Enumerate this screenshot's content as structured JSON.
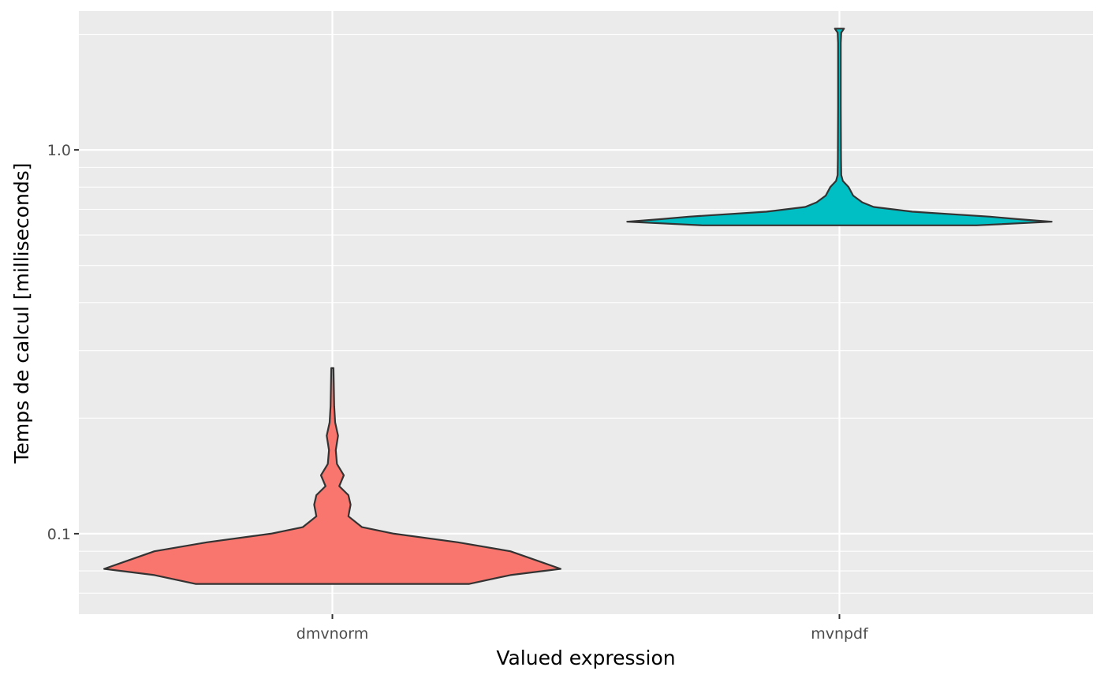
{
  "chart_data": {
    "type": "violin",
    "xlabel": "Valued expression",
    "ylabel": "Temps de calcul [milliseconds]",
    "y_scale": "log10",
    "ylim": [
      0.0617,
      2.3
    ],
    "y_ticks": [
      {
        "value": 0.1,
        "label": "0.1"
      },
      {
        "value": 1.0,
        "label": "1.0"
      }
    ],
    "categories": [
      "dmvnorm",
      "mvnpdf"
    ],
    "grid": true,
    "legend": "none",
    "background": "#ebebeb",
    "series": [
      {
        "category": "dmvnorm",
        "color": "#f8766d",
        "min": 0.074,
        "max": 0.27,
        "density": [
          [
            0.074,
            0.6
          ],
          [
            0.078,
            0.78
          ],
          [
            0.081,
            1.0
          ],
          [
            0.085,
            0.9
          ],
          [
            0.09,
            0.78
          ],
          [
            0.095,
            0.55
          ],
          [
            0.1,
            0.27
          ],
          [
            0.104,
            0.13
          ],
          [
            0.111,
            0.07
          ],
          [
            0.119,
            0.08
          ],
          [
            0.126,
            0.07
          ],
          [
            0.133,
            0.03
          ],
          [
            0.142,
            0.05
          ],
          [
            0.152,
            0.02
          ],
          [
            0.165,
            0.015
          ],
          [
            0.18,
            0.025
          ],
          [
            0.195,
            0.012
          ],
          [
            0.215,
            0.008
          ],
          [
            0.27,
            0.005
          ]
        ]
      },
      {
        "category": "mvnpdf",
        "color": "#00bfc4",
        "min": 0.636,
        "max": 2.07,
        "density": [
          [
            0.636,
            0.6
          ],
          [
            0.65,
            0.93
          ],
          [
            0.66,
            0.78
          ],
          [
            0.67,
            0.66
          ],
          [
            0.69,
            0.32
          ],
          [
            0.71,
            0.15
          ],
          [
            0.73,
            0.1
          ],
          [
            0.76,
            0.06
          ],
          [
            0.8,
            0.04
          ],
          [
            0.83,
            0.015
          ],
          [
            0.86,
            0.008
          ],
          [
            0.95,
            0.007
          ],
          [
            1.3,
            0.006
          ],
          [
            1.9,
            0.006
          ],
          [
            2.02,
            0.008
          ],
          [
            2.07,
            0.02
          ]
        ]
      }
    ]
  }
}
